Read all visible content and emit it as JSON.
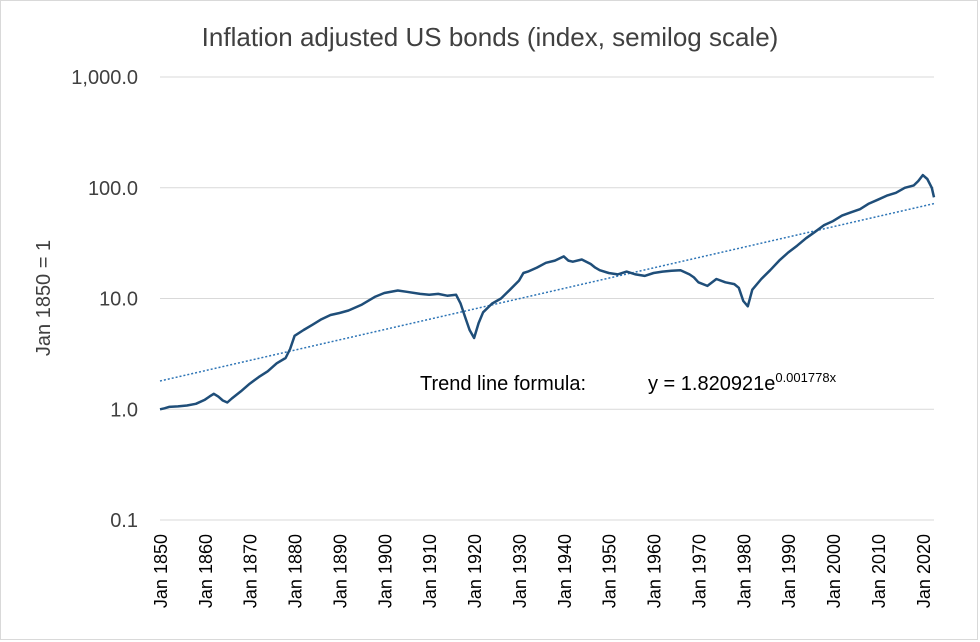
{
  "chart_data": {
    "type": "line",
    "title": "Inflation adjusted US bonds (index, semilog scale)",
    "ylabel": "Jan 1850 = 1",
    "xlabel": "",
    "y_scale": "log",
    "ylim": [
      0.1,
      1000
    ],
    "y_ticks": [
      0.1,
      1,
      10,
      100,
      1000
    ],
    "y_tick_labels": [
      "0.1",
      "1.0",
      "10.0",
      "100.0",
      "1,000.0"
    ],
    "x_ticks": [
      1850,
      1860,
      1870,
      1880,
      1890,
      1900,
      1910,
      1920,
      1930,
      1940,
      1950,
      1960,
      1970,
      1980,
      1990,
      2000,
      2010,
      2020
    ],
    "x_tick_labels": [
      "Jan 1850",
      "Jan 1860",
      "Jan 1870",
      "Jan 1880",
      "Jan 1890",
      "Jan 1900",
      "Jan 1910",
      "Jan 1920",
      "Jan 1930",
      "Jan 1940",
      "Jan 1950",
      "Jan 1960",
      "Jan 1970",
      "Jan 1980",
      "Jan 1990",
      "Jan 2000",
      "Jan 2010",
      "Jan 2020"
    ],
    "xlim": [
      1850,
      2022.5
    ],
    "grid": "horizontal",
    "line_color": "#1f4e79",
    "trend_color": "#2e75b6",
    "series": [
      {
        "x": [
          1850,
          1851,
          1852,
          1854,
          1856,
          1858,
          1860,
          1861,
          1862,
          1863,
          1864,
          1865,
          1866,
          1868,
          1870,
          1872,
          1874,
          1876,
          1878,
          1879,
          1880,
          1882,
          1884,
          1886,
          1888,
          1890,
          1892,
          1895,
          1898,
          1900,
          1903,
          1905,
          1908,
          1910,
          1912,
          1914,
          1916,
          1917,
          1918,
          1919,
          1920,
          1921,
          1922,
          1924,
          1926,
          1928,
          1930,
          1931,
          1932,
          1934,
          1936,
          1938,
          1940,
          1941,
          1942,
          1944,
          1946,
          1947,
          1948,
          1950,
          1952,
          1954,
          1956,
          1958,
          1960,
          1962,
          1964,
          1966,
          1968,
          1969,
          1970,
          1972,
          1974,
          1976,
          1978,
          1979,
          1980,
          1981,
          1982,
          1984,
          1986,
          1988,
          1990,
          1992,
          1994,
          1996,
          1998,
          2000,
          2002,
          2004,
          2006,
          2008,
          2010,
          2012,
          2014,
          2016,
          2018,
          2019,
          2020,
          2021,
          2022,
          2022.5
        ],
        "values": [
          1.0,
          1.02,
          1.05,
          1.06,
          1.08,
          1.12,
          1.22,
          1.3,
          1.38,
          1.3,
          1.2,
          1.15,
          1.25,
          1.45,
          1.7,
          1.95,
          2.2,
          2.6,
          2.9,
          3.5,
          4.6,
          5.2,
          5.8,
          6.5,
          7.1,
          7.4,
          7.8,
          8.8,
          10.4,
          11.2,
          11.8,
          11.5,
          11.0,
          10.8,
          11.0,
          10.6,
          10.8,
          9.0,
          6.8,
          5.2,
          4.4,
          6.0,
          7.5,
          9.0,
          10.0,
          12.0,
          14.5,
          17.0,
          17.5,
          19.0,
          21.0,
          22.0,
          24.0,
          22.0,
          21.5,
          22.5,
          20.5,
          19.0,
          18.0,
          17.0,
          16.5,
          17.5,
          16.5,
          16.0,
          17.0,
          17.5,
          17.8,
          18.0,
          16.5,
          15.5,
          14.0,
          13.0,
          15.0,
          14.0,
          13.5,
          12.5,
          9.5,
          8.5,
          12.0,
          15.0,
          18.0,
          22.0,
          26.0,
          30.0,
          35.0,
          40.0,
          46.0,
          50.0,
          56.0,
          60.0,
          64.0,
          72.0,
          78.0,
          85.0,
          90.0,
          100.0,
          105.0,
          115.0,
          130.0,
          120.0,
          100.0,
          82.0
        ]
      }
    ],
    "trend_line": {
      "label": "Trend line formula:",
      "formula_base": "y = 1.820921e",
      "formula_exp": "0.001778x",
      "start_value": 1.8,
      "end_value": 72.0
    }
  }
}
